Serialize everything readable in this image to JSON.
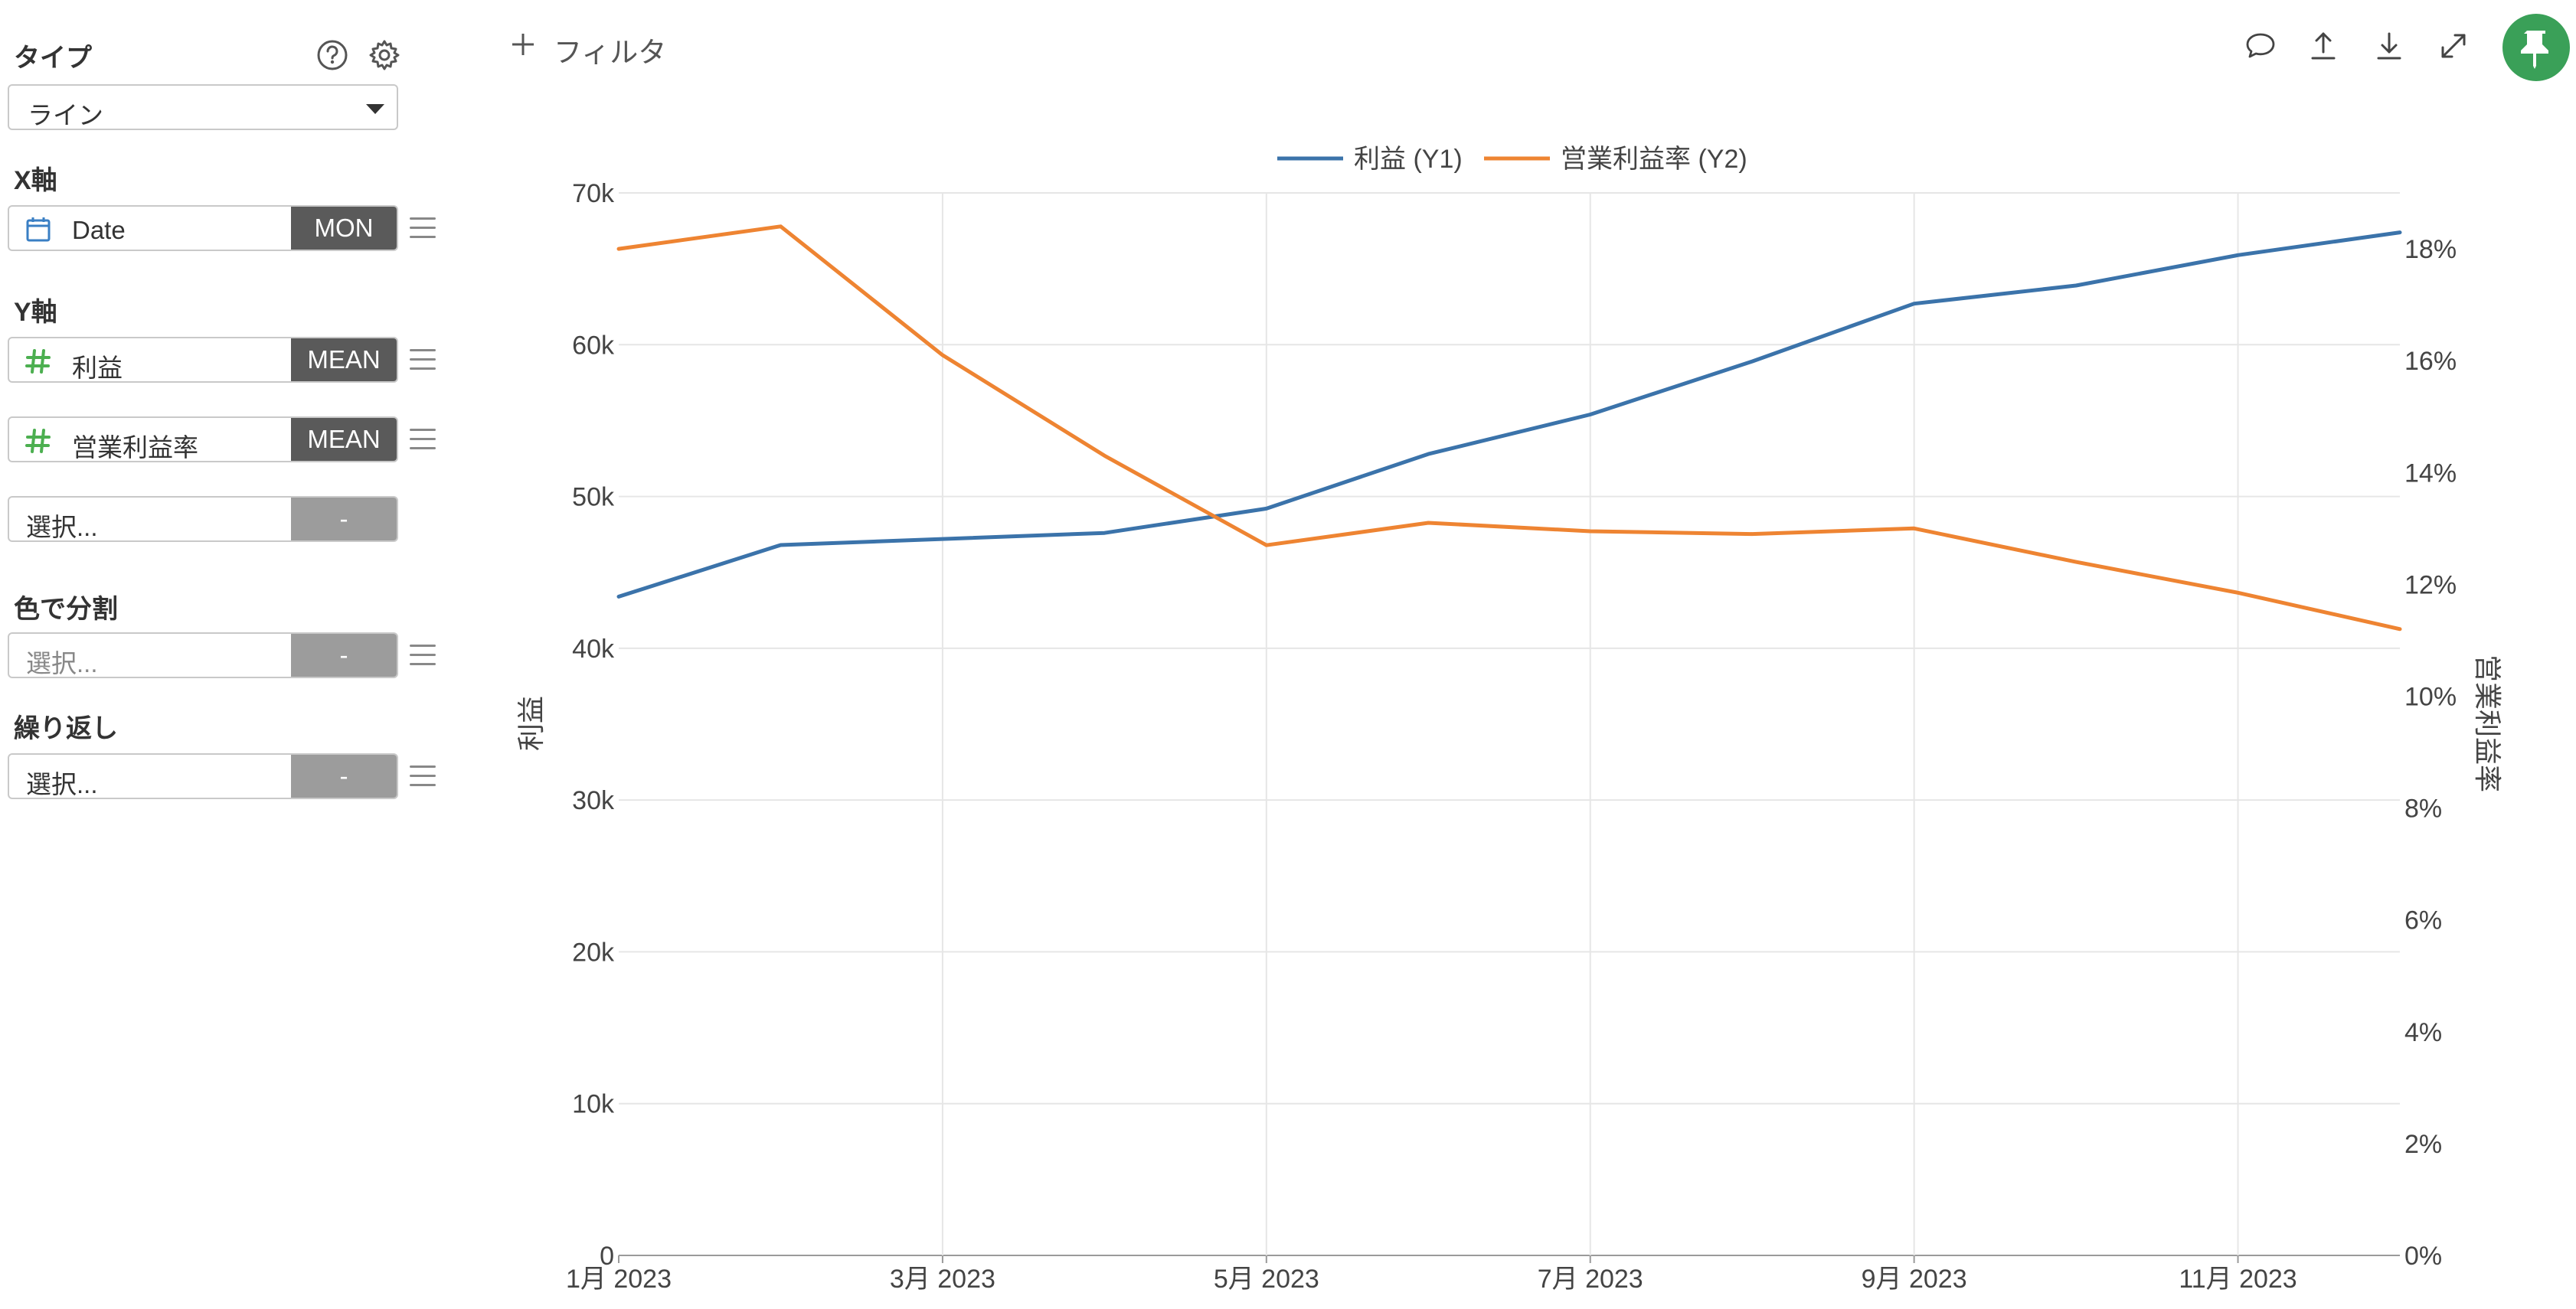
{
  "sidebar": {
    "type_label": "タイプ",
    "type_value": "ライン",
    "x_axis_label": "X軸",
    "x_field": {
      "name": "Date",
      "agg": "MON"
    },
    "y_axis_label": "Y軸",
    "y_fields": [
      {
        "name": "利益",
        "agg": "MEAN"
      },
      {
        "name": "営業利益率",
        "agg": "MEAN"
      }
    ],
    "y_placeholder": {
      "text": "選択...",
      "agg": "-"
    },
    "color_label": "色で分割",
    "color_placeholder": {
      "text": "選択...",
      "agg": "-"
    },
    "repeat_label": "繰り返し",
    "repeat_placeholder": {
      "text": "選択...",
      "agg": "-"
    }
  },
  "toolbar": {
    "filter_label": "フィルタ",
    "icons": [
      "comment-icon",
      "upload-icon",
      "download-icon",
      "expand-icon",
      "pin-icon"
    ]
  },
  "colors": {
    "series1": "#3b73aa",
    "series2": "#ee8432",
    "pin": "#3aa058",
    "field_icon": "#4caf50",
    "date_icon": "#3a7fc4"
  },
  "chart_data": {
    "type": "line",
    "x": [
      "2023-01",
      "2023-02",
      "2023-03",
      "2023-04",
      "2023-05",
      "2023-06",
      "2023-07",
      "2023-08",
      "2023-09",
      "2023-10",
      "2023-11",
      "2023-12"
    ],
    "x_tick_labels": [
      "1月 2023",
      "3月 2023",
      "5月 2023",
      "7月 2023",
      "9月 2023",
      "11月 2023"
    ],
    "series": [
      {
        "name": "利益 (Y1)",
        "axis": "y1",
        "values": [
          43400,
          46800,
          47200,
          47600,
          49200,
          52800,
          55400,
          58900,
          62700,
          63900,
          65900,
          67400
        ]
      },
      {
        "name": "営業利益率 (Y2)",
        "axis": "y2",
        "values": [
          18.0,
          18.4,
          16.1,
          14.3,
          12.7,
          13.1,
          12.95,
          12.9,
          13.0,
          12.4,
          11.85,
          11.2
        ]
      }
    ],
    "ylabel": "利益",
    "y2label": "営業利益率",
    "ylim": [
      0,
      70000
    ],
    "y_ticks": [
      "0",
      "10k",
      "20k",
      "30k",
      "40k",
      "50k",
      "60k",
      "70k"
    ],
    "y2lim": [
      0,
      19
    ],
    "y2_ticks": [
      "0%",
      "2%",
      "4%",
      "6%",
      "8%",
      "10%",
      "12%",
      "14%",
      "16%",
      "18%"
    ],
    "legend_position": "top",
    "grid": true
  }
}
